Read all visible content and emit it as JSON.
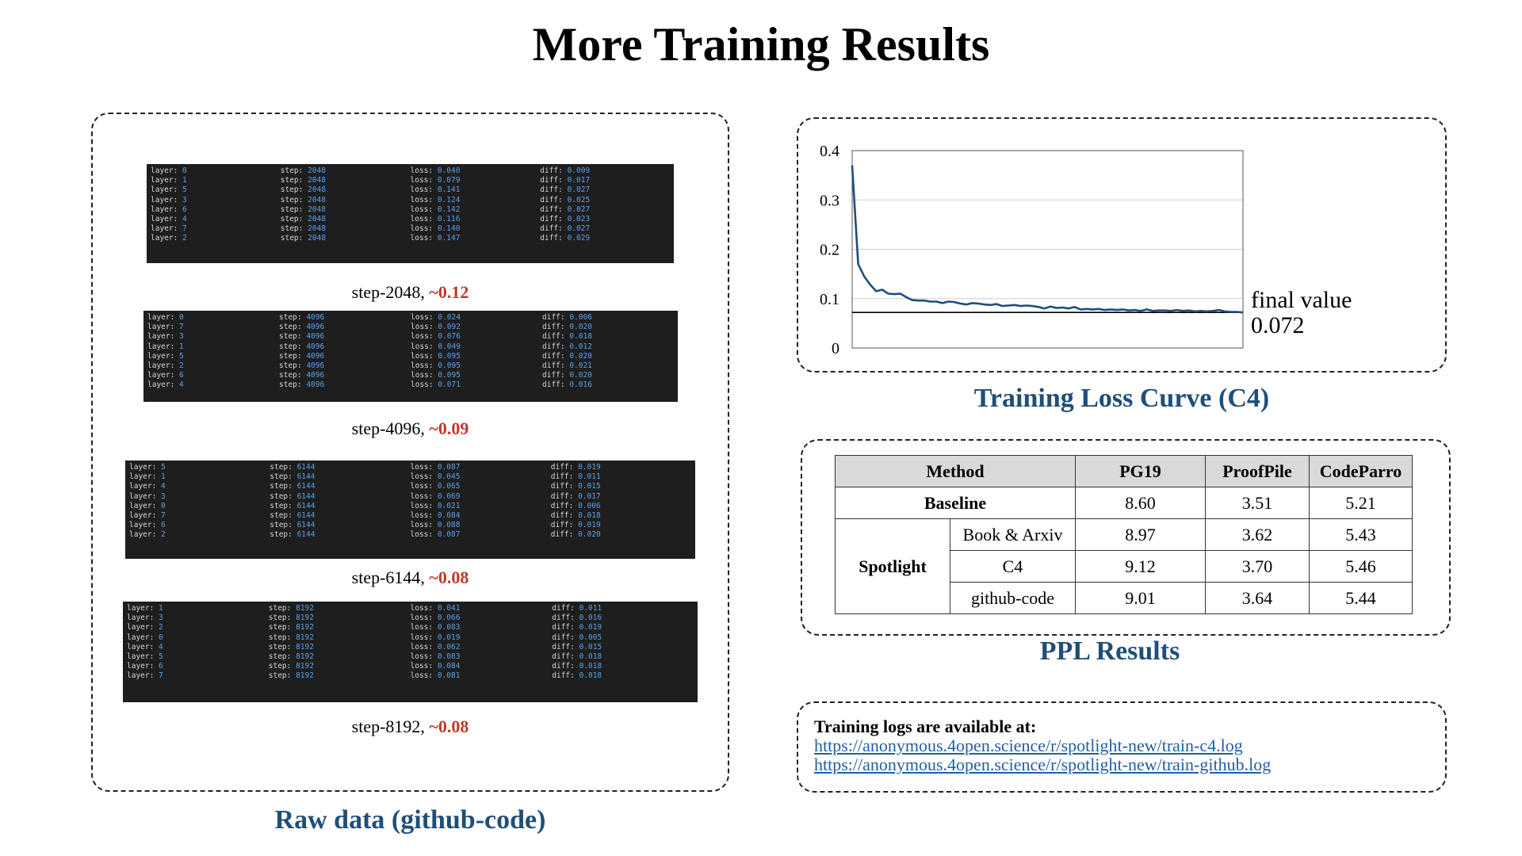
{
  "title": "More Training Results",
  "raw": {
    "caption": "Raw data (github-code)",
    "keys": {
      "layer": "layer:",
      "step": "step:",
      "loss": "loss:",
      "diff": "diff:"
    },
    "blocks": [
      {
        "label": "step-2048, ",
        "delta": "~0.12",
        "rows": [
          [
            "0",
            "2048",
            "0.040",
            "0.009"
          ],
          [
            "1",
            "2048",
            "0.079",
            "0.017"
          ],
          [
            "5",
            "2048",
            "0.141",
            "0.027"
          ],
          [
            "3",
            "2048",
            "0.124",
            "0.025"
          ],
          [
            "6",
            "2048",
            "0.142",
            "0.027"
          ],
          [
            "4",
            "2048",
            "0.116",
            "0.023"
          ],
          [
            "7",
            "2048",
            "0.140",
            "0.027"
          ],
          [
            "2",
            "2048",
            "0.147",
            "0.029"
          ]
        ]
      },
      {
        "label": "step-4096, ",
        "delta": "~0.09",
        "rows": [
          [
            "0",
            "4096",
            "0.024",
            "0.006"
          ],
          [
            "7",
            "4096",
            "0.092",
            "0.020"
          ],
          [
            "3",
            "4096",
            "0.076",
            "0.018"
          ],
          [
            "1",
            "4096",
            "0.049",
            "0.012"
          ],
          [
            "5",
            "4096",
            "0.095",
            "0.020"
          ],
          [
            "2",
            "4096",
            "0.095",
            "0.021"
          ],
          [
            "6",
            "4096",
            "0.095",
            "0.020"
          ],
          [
            "4",
            "4096",
            "0.071",
            "0.016"
          ]
        ]
      },
      {
        "label": "step-6144, ",
        "delta": "~0.08",
        "rows": [
          [
            "5",
            "6144",
            "0.087",
            "0.019"
          ],
          [
            "1",
            "6144",
            "0.045",
            "0.011"
          ],
          [
            "4",
            "6144",
            "0.065",
            "0.015"
          ],
          [
            "3",
            "6144",
            "0.069",
            "0.017"
          ],
          [
            "0",
            "6144",
            "0.021",
            "0.006"
          ],
          [
            "7",
            "6144",
            "0.084",
            "0.018"
          ],
          [
            "6",
            "6144",
            "0.088",
            "0.019"
          ],
          [
            "2",
            "6144",
            "0.087",
            "0.020"
          ]
        ]
      },
      {
        "label": "step-8192, ",
        "delta": "~0.08",
        "rows": [
          [
            "1",
            "8192",
            "0.041",
            "0.011"
          ],
          [
            "3",
            "8192",
            "0.066",
            "0.016"
          ],
          [
            "2",
            "8192",
            "0.083",
            "0.019"
          ],
          [
            "0",
            "8192",
            "0.019",
            "0.005"
          ],
          [
            "4",
            "8192",
            "0.062",
            "0.015"
          ],
          [
            "5",
            "8192",
            "0.083",
            "0.018"
          ],
          [
            "6",
            "8192",
            "0.084",
            "0.018"
          ],
          [
            "7",
            "8192",
            "0.081",
            "0.018"
          ]
        ]
      }
    ]
  },
  "loss_caption": "Training Loss Curve (C4)",
  "chart_data": {
    "type": "line",
    "title": "",
    "xlabel": "",
    "ylabel": "",
    "ylim": [
      0,
      0.4
    ],
    "yticks": [
      "0",
      "0.1",
      "0.2",
      "0.3",
      "0.4"
    ],
    "grid": true,
    "series": [
      {
        "values": [
          0.37,
          0.17,
          0.145,
          0.128,
          0.115,
          0.118,
          0.11,
          0.109,
          0.11,
          0.103,
          0.097,
          0.096,
          0.096,
          0.094,
          0.094,
          0.091,
          0.094,
          0.093,
          0.09,
          0.088,
          0.091,
          0.09,
          0.088,
          0.087,
          0.089,
          0.085,
          0.086,
          0.087,
          0.085,
          0.086,
          0.085,
          0.083,
          0.08,
          0.084,
          0.081,
          0.082,
          0.08,
          0.083,
          0.078,
          0.079,
          0.078,
          0.079,
          0.077,
          0.078,
          0.077,
          0.078,
          0.076,
          0.077,
          0.075,
          0.078,
          0.075,
          0.076,
          0.076,
          0.075,
          0.077,
          0.075,
          0.076,
          0.074,
          0.075,
          0.074,
          0.075,
          0.077,
          0.074,
          0.073,
          0.073,
          0.072
        ]
      }
    ],
    "reference_line": {
      "value": 0.072,
      "label_line1": "final value",
      "label_line2": "0.072"
    }
  },
  "ppl": {
    "caption": "PPL Results",
    "headers": [
      "Method",
      "PG19",
      "ProofPile",
      "CodeParro"
    ],
    "baseline": {
      "method": "Baseline",
      "values": [
        "8.60",
        "3.51",
        "5.21"
      ]
    },
    "spotlight": {
      "method": "Spotlight",
      "rows": [
        {
          "name": "Book & Arxiv",
          "values": [
            "8.97",
            "3.62",
            "5.43"
          ]
        },
        {
          "name": "C4",
          "values": [
            "9.12",
            "3.70",
            "5.46"
          ]
        },
        {
          "name": "github-code",
          "values": [
            "9.01",
            "3.64",
            "5.44"
          ]
        }
      ]
    }
  },
  "logs": {
    "header": "Training logs are available at:",
    "links": [
      "https://anonymous.4open.science/r/spotlight-new/train-c4.log",
      "https://anonymous.4open.science/r/spotlight-new/train-github.log"
    ]
  }
}
